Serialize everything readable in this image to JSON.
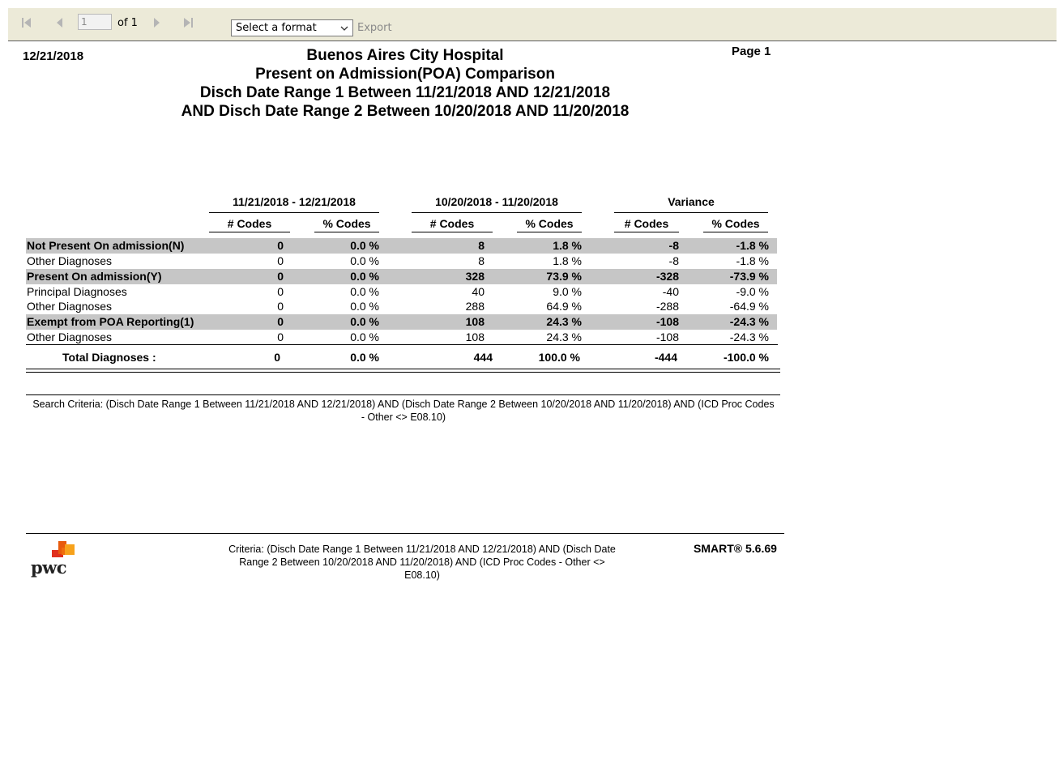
{
  "toolbar": {
    "page_input_value": "1",
    "page_of": "of 1",
    "format_select": "Select a format",
    "export_label": "Export"
  },
  "report": {
    "run_date": "12/21/2018",
    "page_label": "Page 1",
    "title_lines": [
      "Buenos Aires City Hospital",
      "Present on Admission(POA) Comparison",
      "Disch Date Range 1 Between 11/21/2018 AND 12/21/2018",
      "AND Disch Date Range 2 Between 10/20/2018 AND 11/20/2018"
    ]
  },
  "table": {
    "groups": [
      "11/21/2018 - 12/21/2018",
      "10/20/2018 - 11/20/2018",
      "Variance"
    ],
    "columns": [
      "# Codes",
      "% Codes",
      "# Codes",
      "% Codes",
      "# Codes",
      "% Codes"
    ],
    "rows": [
      {
        "label": "Not Present On admission(N)",
        "values": [
          "0",
          "0.0 %",
          "8",
          "1.8 %",
          "-8",
          "-1.8 %"
        ]
      },
      {
        "label": "Other Diagnoses",
        "values": [
          "0",
          "0.0 %",
          "8",
          "1.8 %",
          "-8",
          "-1.8 %"
        ]
      },
      {
        "label": "Present On admission(Y)",
        "values": [
          "0",
          "0.0 %",
          "328",
          "73.9 %",
          "-328",
          "-73.9 %"
        ]
      },
      {
        "label": "Principal Diagnoses",
        "values": [
          "0",
          "0.0 %",
          "40",
          "9.0 %",
          "-40",
          "-9.0 %"
        ]
      },
      {
        "label": "Other Diagnoses",
        "values": [
          "0",
          "0.0 %",
          "288",
          "64.9 %",
          "-288",
          "-64.9 %"
        ]
      },
      {
        "label": "Exempt from POA Reporting(1)",
        "values": [
          "0",
          "0.0 %",
          "108",
          "24.3 %",
          "-108",
          "-24.3 %"
        ]
      },
      {
        "label": "Other Diagnoses",
        "values": [
          "0",
          "0.0 %",
          "108",
          "24.3 %",
          "-108",
          "-24.3 %"
        ]
      }
    ],
    "total": {
      "label": "Total Diagnoses :",
      "values": [
        "0",
        "0.0 %",
        "444",
        "100.0 %",
        "-444",
        "-100.0 %"
      ]
    },
    "shade_color": "#c6c6c6"
  },
  "search_criteria": "Search Criteria: (Disch Date Range 1 Between 11/21/2018 AND 12/21/2018) AND (Disch Date Range 2 Between 10/20/2018 AND 11/20/2018) AND (ICD Proc Codes - Other <> E08.10)",
  "footer": {
    "logo_text": "pwc",
    "criteria": "Criteria: (Disch Date Range 1 Between 11/21/2018 AND 12/21/2018) AND (Disch Date Range 2 Between 10/20/2018 AND 11/20/2018) AND (ICD Proc Codes - Other <> E08.10)",
    "version": "SMART® 5.6.69"
  },
  "icons": {
    "first": "first-page-icon",
    "prev": "previous-page-icon",
    "next": "next-page-icon",
    "last": "last-page-icon",
    "dropdown": "chevron-down-icon"
  }
}
